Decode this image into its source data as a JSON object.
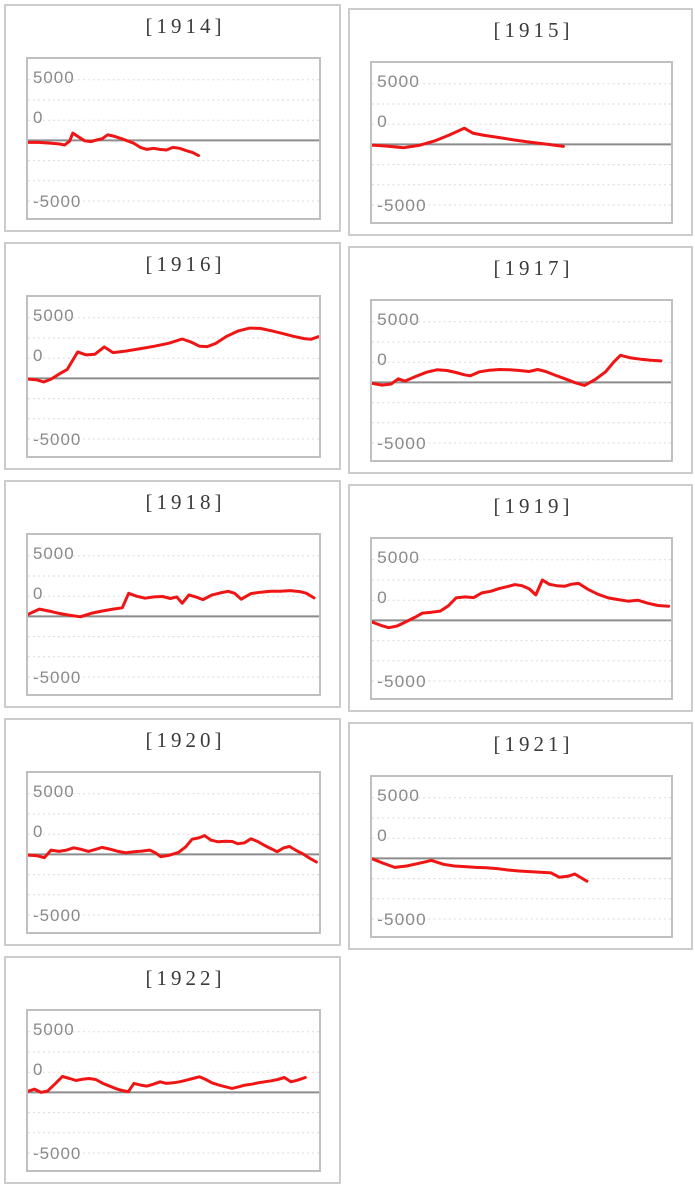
{
  "colors": {
    "background": "#ffffff",
    "panel_border": "#cccccc",
    "plot_border": "#c0c0c0",
    "grid_line": "#dadada",
    "zero_line": "#8c8c8c",
    "tick_text": "#8a8a8a",
    "title_text": "#3a3a3a",
    "series_line": "#f01515"
  },
  "chart_data": {
    "type": "line",
    "layout": "small-multiples, 2 columns, 9 panels",
    "legend": "none",
    "series_color": "#f01515",
    "y_axis": {
      "tick_labels": [
        "5000",
        "0",
        "-5000"
      ],
      "tick_values": [
        5000,
        0,
        -5000
      ],
      "gridline_values": [
        5000,
        3333,
        1667,
        0,
        -1667,
        -3333,
        -5000
      ],
      "zero_line_style": "solid gray, other gridlines dotted",
      "range_approx": [
        -6700,
        6700
      ]
    },
    "x_axis": {
      "tick_labels": [],
      "note": "no visible x labels; point x given as percent of plot width (0-100)"
    },
    "panels": [
      {
        "year": 1914,
        "title": "[1914]",
        "points": [
          [
            0,
            -165
          ],
          [
            3.6,
            -165
          ],
          [
            7.5,
            -220
          ],
          [
            10.9,
            -300
          ],
          [
            12.6,
            -380
          ],
          [
            14.3,
            -55
          ],
          [
            15.4,
            600
          ],
          [
            17.3,
            300
          ],
          [
            19.5,
            -30
          ],
          [
            21.5,
            -110
          ],
          [
            23.6,
            30
          ],
          [
            25.5,
            140
          ],
          [
            27.4,
            465
          ],
          [
            29.4,
            355
          ],
          [
            31.9,
            165
          ],
          [
            34.1,
            -30
          ],
          [
            36.4,
            -245
          ],
          [
            38.6,
            -575
          ],
          [
            40.9,
            -740
          ],
          [
            43.1,
            -655
          ],
          [
            45.3,
            -740
          ],
          [
            47.6,
            -790
          ],
          [
            49.8,
            -575
          ],
          [
            52.1,
            -655
          ],
          [
            54.3,
            -845
          ],
          [
            56.6,
            -1010
          ],
          [
            58.6,
            -1255
          ]
        ]
      },
      {
        "year": 1915,
        "title": "[1915]",
        "points": [
          [
            0,
            -55
          ],
          [
            4.5,
            -135
          ],
          [
            10.7,
            -270
          ],
          [
            15.7,
            -80
          ],
          [
            20.8,
            270
          ],
          [
            25.8,
            765
          ],
          [
            30.9,
            1340
          ],
          [
            33.7,
            930
          ],
          [
            37.1,
            765
          ],
          [
            42.1,
            575
          ],
          [
            47.8,
            355
          ],
          [
            53.4,
            165
          ],
          [
            59,
            0
          ],
          [
            64,
            -165
          ]
        ]
      },
      {
        "year": 1916,
        "title": "[1916]",
        "points": [
          [
            0,
            -55
          ],
          [
            2.8,
            -110
          ],
          [
            5.4,
            -300
          ],
          [
            7.9,
            -55
          ],
          [
            10.7,
            355
          ],
          [
            13.5,
            740
          ],
          [
            17.1,
            2185
          ],
          [
            20,
            1940
          ],
          [
            23,
            1995
          ],
          [
            26.2,
            2595
          ],
          [
            29.2,
            2130
          ],
          [
            33.1,
            2240
          ],
          [
            38.2,
            2430
          ],
          [
            43.3,
            2650
          ],
          [
            48.3,
            2895
          ],
          [
            53,
            3250
          ],
          [
            56,
            3005
          ],
          [
            59,
            2650
          ],
          [
            61.6,
            2620
          ],
          [
            64.6,
            2895
          ],
          [
            68.3,
            3470
          ],
          [
            72.1,
            3905
          ],
          [
            76.2,
            4150
          ],
          [
            79.8,
            4125
          ],
          [
            83.7,
            3930
          ],
          [
            87.4,
            3715
          ],
          [
            91.2,
            3470
          ],
          [
            94.9,
            3280
          ],
          [
            97.2,
            3225
          ],
          [
            99.8,
            3440
          ]
        ]
      },
      {
        "year": 1917,
        "title": "[1917]",
        "points": [
          [
            0,
            -80
          ],
          [
            3.4,
            -220
          ],
          [
            6.4,
            -135
          ],
          [
            8.8,
            300
          ],
          [
            11,
            110
          ],
          [
            14.6,
            490
          ],
          [
            18.3,
            845
          ],
          [
            21.7,
            1040
          ],
          [
            25.1,
            985
          ],
          [
            28.1,
            820
          ],
          [
            30.9,
            630
          ],
          [
            32.9,
            545
          ],
          [
            36,
            875
          ],
          [
            39.3,
            1010
          ],
          [
            42.7,
            1065
          ],
          [
            46.1,
            1040
          ],
          [
            49.4,
            985
          ],
          [
            52.5,
            900
          ],
          [
            55.4,
            1065
          ],
          [
            58.1,
            900
          ],
          [
            61.2,
            600
          ],
          [
            64.6,
            300
          ],
          [
            68,
            -30
          ],
          [
            71.1,
            -245
          ],
          [
            74.7,
            245
          ],
          [
            78.1,
            875
          ],
          [
            80.9,
            1695
          ],
          [
            83.1,
            2240
          ],
          [
            86.5,
            2020
          ],
          [
            89.9,
            1915
          ],
          [
            93.3,
            1830
          ],
          [
            96.6,
            1775
          ]
        ]
      },
      {
        "year": 1918,
        "title": "[1918]",
        "points": [
          [
            0,
            165
          ],
          [
            3.9,
            600
          ],
          [
            7.3,
            435
          ],
          [
            10.7,
            245
          ],
          [
            14,
            110
          ],
          [
            18,
            -30
          ],
          [
            21.6,
            245
          ],
          [
            25.3,
            435
          ],
          [
            29.2,
            600
          ],
          [
            32.4,
            710
          ],
          [
            34.6,
            1910
          ],
          [
            37.3,
            1665
          ],
          [
            40.2,
            1500
          ],
          [
            43.3,
            1610
          ],
          [
            46.3,
            1640
          ],
          [
            48.9,
            1475
          ],
          [
            51.1,
            1610
          ],
          [
            53,
            1090
          ],
          [
            55.3,
            1775
          ],
          [
            57.9,
            1585
          ],
          [
            60.1,
            1390
          ],
          [
            63.3,
            1775
          ],
          [
            66.1,
            1940
          ],
          [
            68.8,
            2075
          ],
          [
            71,
            1910
          ],
          [
            73.3,
            1420
          ],
          [
            76.6,
            1885
          ],
          [
            80,
            1995
          ],
          [
            83.4,
            2075
          ],
          [
            86.7,
            2075
          ],
          [
            90.1,
            2130
          ],
          [
            93.5,
            2050
          ],
          [
            95.7,
            1910
          ],
          [
            98.3,
            1530
          ]
        ]
      },
      {
        "year": 1919,
        "title": "[1919]",
        "points": [
          [
            0,
            -135
          ],
          [
            3,
            -410
          ],
          [
            5.6,
            -600
          ],
          [
            8.4,
            -465
          ],
          [
            11.2,
            -135
          ],
          [
            14.3,
            245
          ],
          [
            16.9,
            600
          ],
          [
            20,
            680
          ],
          [
            22.8,
            765
          ],
          [
            25.5,
            1200
          ],
          [
            28.1,
            1855
          ],
          [
            31.1,
            1940
          ],
          [
            34,
            1885
          ],
          [
            36.7,
            2265
          ],
          [
            39.7,
            2400
          ],
          [
            42.5,
            2620
          ],
          [
            45.3,
            2785
          ],
          [
            47.8,
            2950
          ],
          [
            50.2,
            2865
          ],
          [
            52.6,
            2595
          ],
          [
            54.8,
            2100
          ],
          [
            57,
            3330
          ],
          [
            59.3,
            2975
          ],
          [
            61.8,
            2865
          ],
          [
            64.4,
            2810
          ],
          [
            66.6,
            2975
          ],
          [
            69.1,
            3055
          ],
          [
            72.2,
            2565
          ],
          [
            75.6,
            2155
          ],
          [
            79,
            1855
          ],
          [
            82.4,
            1720
          ],
          [
            85.7,
            1585
          ],
          [
            88.9,
            1665
          ],
          [
            92.2,
            1420
          ],
          [
            95.6,
            1230
          ],
          [
            99.2,
            1175
          ]
        ]
      },
      {
        "year": 1920,
        "title": "[1920]",
        "points": [
          [
            0,
            -55
          ],
          [
            3.1,
            -110
          ],
          [
            5.6,
            -270
          ],
          [
            7.9,
            355
          ],
          [
            10.6,
            245
          ],
          [
            13.3,
            355
          ],
          [
            15.7,
            545
          ],
          [
            18.4,
            410
          ],
          [
            20.8,
            245
          ],
          [
            23.1,
            410
          ],
          [
            25.4,
            575
          ],
          [
            28.1,
            435
          ],
          [
            31,
            245
          ],
          [
            33.7,
            135
          ],
          [
            36.4,
            220
          ],
          [
            39.1,
            270
          ],
          [
            41.8,
            355
          ],
          [
            43.8,
            135
          ],
          [
            45.6,
            -190
          ],
          [
            48.3,
            -80
          ],
          [
            51.7,
            165
          ],
          [
            54.2,
            630
          ],
          [
            56.4,
            1255
          ],
          [
            58.7,
            1365
          ],
          [
            60.7,
            1555
          ],
          [
            62.9,
            1175
          ],
          [
            65.4,
            1040
          ],
          [
            67.9,
            1090
          ],
          [
            70.2,
            1065
          ],
          [
            72.1,
            875
          ],
          [
            74.4,
            955
          ],
          [
            76.6,
            1285
          ],
          [
            78.9,
            1065
          ],
          [
            81.1,
            765
          ],
          [
            83.4,
            490
          ],
          [
            85.6,
            220
          ],
          [
            87.9,
            545
          ],
          [
            89.9,
            655
          ],
          [
            92.1,
            330
          ],
          [
            94.4,
            55
          ],
          [
            96.9,
            -330
          ],
          [
            99.1,
            -630
          ]
        ]
      },
      {
        "year": 1921,
        "title": "[1921]",
        "points": [
          [
            0,
            -30
          ],
          [
            3.9,
            -410
          ],
          [
            7.6,
            -740
          ],
          [
            11.6,
            -630
          ],
          [
            15.5,
            -410
          ],
          [
            19.9,
            -165
          ],
          [
            23.9,
            -490
          ],
          [
            27.5,
            -630
          ],
          [
            31.1,
            -680
          ],
          [
            34.7,
            -740
          ],
          [
            38.3,
            -765
          ],
          [
            41.9,
            -845
          ],
          [
            45.5,
            -955
          ],
          [
            49.1,
            -1040
          ],
          [
            52.7,
            -1090
          ],
          [
            56.3,
            -1145
          ],
          [
            59.9,
            -1200
          ],
          [
            62.6,
            -1555
          ],
          [
            65.5,
            -1475
          ],
          [
            67.8,
            -1285
          ],
          [
            70,
            -1610
          ],
          [
            71.9,
            -1885
          ]
        ]
      },
      {
        "year": 1922,
        "title": "[1922]",
        "points": [
          [
            0,
            80
          ],
          [
            2.2,
            270
          ],
          [
            4.5,
            0
          ],
          [
            6.7,
            110
          ],
          [
            9.6,
            765
          ],
          [
            11.8,
            1310
          ],
          [
            14.3,
            1145
          ],
          [
            16.5,
            985
          ],
          [
            18.8,
            1090
          ],
          [
            21,
            1145
          ],
          [
            23.3,
            1065
          ],
          [
            25.5,
            765
          ],
          [
            27.8,
            545
          ],
          [
            30,
            330
          ],
          [
            32.2,
            165
          ],
          [
            34.5,
            55
          ],
          [
            36.4,
            740
          ],
          [
            38.7,
            600
          ],
          [
            40.9,
            520
          ],
          [
            43.1,
            680
          ],
          [
            45.4,
            875
          ],
          [
            47.6,
            740
          ],
          [
            49.9,
            790
          ],
          [
            52.1,
            875
          ],
          [
            54.4,
            1010
          ],
          [
            56.6,
            1145
          ],
          [
            58.9,
            1285
          ],
          [
            61.1,
            1065
          ],
          [
            63.4,
            765
          ],
          [
            65.6,
            600
          ],
          [
            67.9,
            465
          ],
          [
            70.1,
            330
          ],
          [
            72.4,
            465
          ],
          [
            74.6,
            600
          ],
          [
            76.9,
            680
          ],
          [
            79.1,
            790
          ],
          [
            81.3,
            875
          ],
          [
            83.6,
            955
          ],
          [
            85.8,
            1065
          ],
          [
            88.1,
            1230
          ],
          [
            90.3,
            875
          ],
          [
            92.6,
            1010
          ],
          [
            95.3,
            1230
          ]
        ]
      }
    ]
  }
}
